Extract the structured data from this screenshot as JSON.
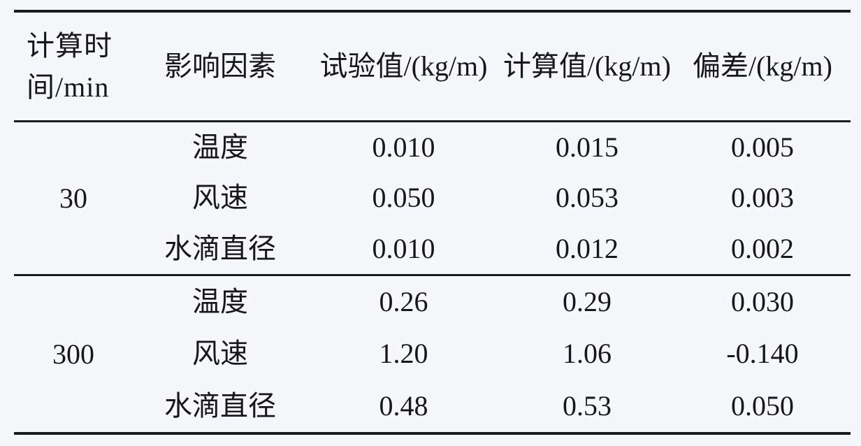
{
  "table": {
    "header": {
      "time_line1": "计算时",
      "time_line2": "间/min",
      "factor": "影响因素",
      "test": "试验值/(kg/m)",
      "calc": "计算值/(kg/m)",
      "dev": "偏差/(kg/m)"
    },
    "sections": [
      {
        "time": "30",
        "rows": [
          {
            "factor": "温度",
            "test": "0.010",
            "calc": "0.015",
            "dev": "0.005"
          },
          {
            "factor": "风速",
            "test": "0.050",
            "calc": "0.053",
            "dev": "0.003"
          },
          {
            "factor": "水滴直径",
            "test": "0.010",
            "calc": "0.012",
            "dev": "0.002"
          }
        ]
      },
      {
        "time": "300",
        "rows": [
          {
            "factor": "温度",
            "test": "0.26",
            "calc": "0.29",
            "dev": "0.030"
          },
          {
            "factor": "风速",
            "test": "1.20",
            "calc": "1.06",
            "dev": "-0.140"
          },
          {
            "factor": "水滴直径",
            "test": "0.48",
            "calc": "0.53",
            "dev": "0.050"
          }
        ]
      }
    ]
  },
  "colors": {
    "background": "#f5f7fa",
    "rule": "#1b1b1e",
    "text": "#17161f"
  },
  "chart_data": {
    "type": "table",
    "columns": [
      "计算时间/min",
      "影响因素",
      "试验值/(kg/m)",
      "计算值/(kg/m)",
      "偏差/(kg/m)"
    ],
    "rows": [
      [
        "30",
        "温度",
        "0.010",
        "0.015",
        "0.005"
      ],
      [
        "30",
        "风速",
        "0.050",
        "0.053",
        "0.003"
      ],
      [
        "30",
        "水滴直径",
        "0.010",
        "0.012",
        "0.002"
      ],
      [
        "300",
        "温度",
        "0.26",
        "0.29",
        "0.030"
      ],
      [
        "300",
        "风速",
        "1.20",
        "1.06",
        "-0.140"
      ],
      [
        "300",
        "水滴直径",
        "0.48",
        "0.53",
        "0.050"
      ]
    ]
  }
}
